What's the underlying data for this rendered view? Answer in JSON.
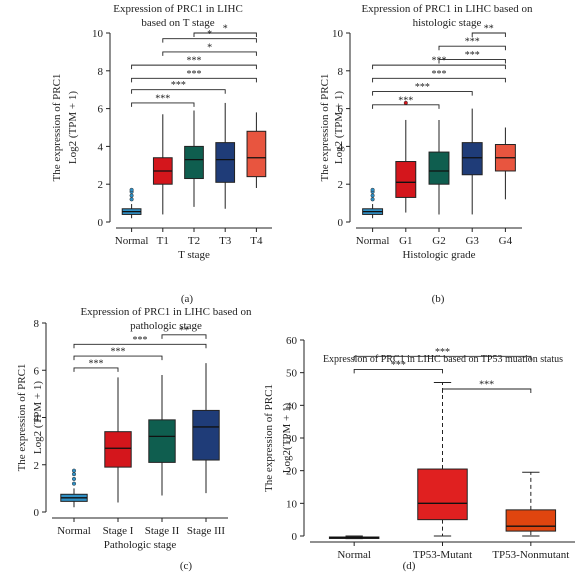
{
  "chart_data": [
    {
      "type": "box",
      "panel_label": "(a)",
      "title_lines": [
        "Expression of PRC1 in LIHC",
        "based on T stage"
      ],
      "xlabel": "T stage",
      "ylabel_lines": [
        "The expression of PRC1",
        "Log2 (TPM + 1)"
      ],
      "ylim": [
        0,
        10
      ],
      "yticks": [
        0,
        2,
        4,
        6,
        8,
        10
      ],
      "categories": [
        "Normal",
        "T1",
        "T2",
        "T3",
        "T4"
      ],
      "colors": [
        "#2f8fc4",
        "#d4161c",
        "#0f5e4f",
        "#1f3c78",
        "#e8553f"
      ],
      "boxes": [
        {
          "whislo": 0.2,
          "q1": 0.4,
          "med": 0.55,
          "q3": 0.7,
          "whishi": 0.95,
          "fliers": [
            1.2,
            1.4,
            1.6,
            1.7
          ]
        },
        {
          "whislo": 0.4,
          "q1": 2.0,
          "med": 2.7,
          "q3": 3.4,
          "whishi": 5.7,
          "fliers": []
        },
        {
          "whislo": 0.8,
          "q1": 2.3,
          "med": 3.3,
          "q3": 4.0,
          "whishi": 5.9,
          "fliers": []
        },
        {
          "whislo": 0.7,
          "q1": 2.1,
          "med": 3.3,
          "q3": 4.2,
          "whishi": 6.3,
          "fliers": []
        },
        {
          "whislo": 1.8,
          "q1": 2.4,
          "med": 3.4,
          "q3": 4.8,
          "whishi": 5.8,
          "fliers": []
        }
      ],
      "brackets": [
        {
          "from": 2,
          "to": 4,
          "y": 10.0,
          "label": "*"
        },
        {
          "from": 1,
          "to": 4,
          "y": 9.7,
          "label": "*"
        },
        {
          "from": 1,
          "to": 4,
          "y": 9.0,
          "label": "*"
        },
        {
          "from": 0,
          "to": 5,
          "y": 8.3,
          "label": "***"
        },
        {
          "from": 0,
          "to": 4,
          "y": 7.6,
          "label": "***"
        },
        {
          "from": 0,
          "to": 3,
          "y": 7.0,
          "label": "***"
        },
        {
          "from": 0,
          "to": 2,
          "y": 6.3,
          "label": "***"
        }
      ]
    },
    {
      "type": "box",
      "panel_label": "(b)",
      "title_lines": [
        "Expression of PRC1 in LIHC based on",
        "histologic stage"
      ],
      "xlabel": "Histologic grade",
      "ylabel_lines": [
        "The expression of PRC1",
        "Log2 (TPM + 1)"
      ],
      "ylim": [
        0,
        10
      ],
      "yticks": [
        0,
        2,
        4,
        6,
        8,
        10
      ],
      "categories": [
        "Normal",
        "G1",
        "G2",
        "G3",
        "G4"
      ],
      "colors": [
        "#2f8fc4",
        "#d4161c",
        "#0f5e4f",
        "#1f3c78",
        "#e8553f"
      ],
      "boxes": [
        {
          "whislo": 0.2,
          "q1": 0.4,
          "med": 0.55,
          "q3": 0.7,
          "whishi": 0.95,
          "fliers": [
            1.2,
            1.4,
            1.6,
            1.7
          ]
        },
        {
          "whislo": 0.5,
          "q1": 1.3,
          "med": 2.1,
          "q3": 3.2,
          "whishi": 5.4,
          "fliers": [
            6.3
          ]
        },
        {
          "whislo": 0.4,
          "q1": 2.0,
          "med": 2.7,
          "q3": 3.7,
          "whishi": 5.4,
          "fliers": []
        },
        {
          "whislo": 0.4,
          "q1": 2.5,
          "med": 3.4,
          "q3": 4.2,
          "whishi": 6.0,
          "fliers": []
        },
        {
          "whislo": 1.2,
          "q1": 2.7,
          "med": 3.4,
          "q3": 4.1,
          "whishi": 5.0,
          "fliers": []
        }
      ],
      "brackets": [
        {
          "from": 3,
          "to": 4,
          "y": 10.0,
          "label": "**"
        },
        {
          "from": 2,
          "to": 4,
          "y": 9.3,
          "label": "***"
        },
        {
          "from": 2,
          "to": 4,
          "y": 8.6,
          "label": "***"
        },
        {
          "from": 0,
          "to": 5,
          "y": 8.3,
          "label": "***"
        },
        {
          "from": 0,
          "to": 4,
          "y": 7.6,
          "label": "***"
        },
        {
          "from": 0,
          "to": 3,
          "y": 6.9,
          "label": "***"
        },
        {
          "from": 0,
          "to": 2,
          "y": 6.2,
          "label": "***"
        }
      ]
    },
    {
      "type": "box",
      "panel_label": "(c)",
      "title_lines": [
        "Expression of PRC1 in LIHC based on",
        "pathologic stage"
      ],
      "xlabel": "Pathologic stage",
      "ylabel_lines": [
        "The expression of PRC1",
        "Log2 (TPM + 1)"
      ],
      "ylim": [
        0,
        8
      ],
      "yticks": [
        0,
        2,
        4,
        6,
        8
      ],
      "categories": [
        "Normal",
        "Stage I",
        "Stage II",
        "Stage III"
      ],
      "colors": [
        "#2f8fc4",
        "#d4161c",
        "#0f5e4f",
        "#1f3c78"
      ],
      "boxes": [
        {
          "whislo": 0.2,
          "q1": 0.45,
          "med": 0.6,
          "q3": 0.75,
          "whishi": 1.0,
          "fliers": [
            1.2,
            1.4,
            1.6,
            1.75
          ]
        },
        {
          "whislo": 0.4,
          "q1": 1.9,
          "med": 2.7,
          "q3": 3.4,
          "whishi": 5.7,
          "fliers": []
        },
        {
          "whislo": 0.7,
          "q1": 2.1,
          "med": 3.2,
          "q3": 3.9,
          "whishi": 5.8,
          "fliers": []
        },
        {
          "whislo": 0.8,
          "q1": 2.2,
          "med": 3.6,
          "q3": 4.3,
          "whishi": 6.3,
          "fliers": []
        }
      ],
      "brackets": [
        {
          "from": 2,
          "to": 3,
          "y": 7.5,
          "label": "**"
        },
        {
          "from": 0,
          "to": 3,
          "y": 7.1,
          "label": "***"
        },
        {
          "from": 0,
          "to": 2,
          "y": 6.6,
          "label": "***"
        },
        {
          "from": 0,
          "to": 1,
          "y": 6.1,
          "label": "***"
        }
      ]
    },
    {
      "type": "box",
      "panel_label": "(d)",
      "title_lines": [
        "Expression of PRC1 in LIHC based on TP53 muation status"
      ],
      "xlabel": "",
      "ylabel_lines": [
        "The expression of PRC1",
        "Log2(TPM + 1)"
      ],
      "ylim": [
        0,
        60
      ],
      "yticks": [
        0,
        10,
        20,
        30,
        40,
        50,
        60
      ],
      "categories": [
        "Normal",
        "TP53-Mutant",
        "TP53-Nonmutant"
      ],
      "colors": [
        "#2f8fc4",
        "#e02020",
        "#e0450f"
      ],
      "boxes": [
        {
          "whislo": -0.8,
          "q1": -0.6,
          "med": -0.5,
          "q3": -0.3,
          "whishi": 0.0,
          "fliers": []
        },
        {
          "whislo": 0.0,
          "q1": 5.0,
          "med": 10.0,
          "q3": 20.5,
          "whishi": 47.0,
          "fliers": []
        },
        {
          "whislo": 0.0,
          "q1": 1.5,
          "med": 3.0,
          "q3": 8.0,
          "whishi": 19.5,
          "fliers": []
        }
      ],
      "brackets": [
        {
          "from": 0,
          "to": 2,
          "y": 55.0,
          "label": "***"
        },
        {
          "from": 0,
          "to": 1,
          "y": 51.0,
          "label": "***"
        },
        {
          "from": 1,
          "to": 2,
          "y": 45.0,
          "label": "***"
        }
      ]
    }
  ]
}
